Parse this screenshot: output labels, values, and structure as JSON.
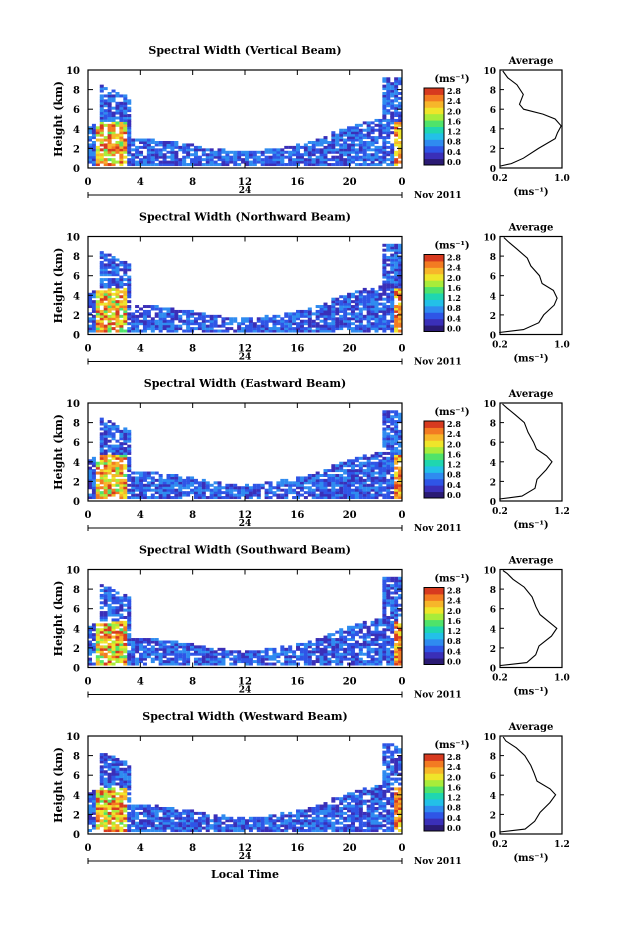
{
  "colors": {
    "palette": [
      "#2a1a73",
      "#3a2fb8",
      "#2f55e6",
      "#2f8bf0",
      "#23c0e8",
      "#1fd6b0",
      "#4fe36a",
      "#a8ec3a",
      "#efe52a",
      "#f7b62a",
      "#f37b22",
      "#d73a1f"
    ],
    "axis": "#000000",
    "background": "#ffffff"
  },
  "shared": {
    "ylabel": "Height (km)",
    "xlabel": "Local Time",
    "date_label": "Nov 2011",
    "day_label": "24",
    "unit_label": "(ms⁻¹)",
    "avg_title": "Average",
    "avg_unit": "(ms⁻¹)",
    "x_ticks": [
      "0",
      "4",
      "8",
      "12",
      "16",
      "20",
      "0"
    ],
    "y_ticks": [
      "0",
      "2",
      "4",
      "6",
      "8",
      "10"
    ],
    "colorbar_ticks": [
      "0.0",
      "0.4",
      "0.8",
      "1.2",
      "1.6",
      "2.0",
      "2.4",
      "2.8"
    ]
  },
  "chart_data": [
    {
      "type": "heatmap",
      "title": "Spectral Width (Vertical Beam)",
      "xlim": [
        0,
        24
      ],
      "ylim": [
        0,
        10
      ],
      "clim": [
        0,
        3.0
      ],
      "avg": {
        "xticks": [
          "0.2",
          "1.0"
        ],
        "xlim": [
          0.2,
          1.0
        ],
        "profile": [
          [
            0.2,
            0.2
          ],
          [
            0.35,
            0.45
          ],
          [
            0.5,
            1.0
          ],
          [
            0.7,
            2.0
          ],
          [
            0.9,
            3.0
          ],
          [
            0.95,
            3.6
          ],
          [
            1.0,
            4.3
          ],
          [
            0.9,
            5.0
          ],
          [
            0.75,
            5.5
          ],
          [
            0.5,
            6.0
          ],
          [
            0.45,
            6.5
          ],
          [
            0.5,
            7.5
          ],
          [
            0.42,
            8.5
          ],
          [
            0.3,
            9.2
          ],
          [
            0.25,
            9.9
          ]
        ]
      }
    },
    {
      "type": "heatmap",
      "title": "Spectral Width (Northward Beam)",
      "xlim": [
        0,
        24
      ],
      "ylim": [
        0,
        10
      ],
      "clim": [
        0,
        3.0
      ],
      "avg": {
        "xticks": [
          "0.2",
          "1.0"
        ],
        "xlim": [
          0.2,
          1.0
        ],
        "profile": [
          [
            0.2,
            0.2
          ],
          [
            0.5,
            0.5
          ],
          [
            0.7,
            1.2
          ],
          [
            0.75,
            2.0
          ],
          [
            0.9,
            3.0
          ],
          [
            0.95,
            3.7
          ],
          [
            0.88,
            4.5
          ],
          [
            0.75,
            5.2
          ],
          [
            0.7,
            6.0
          ],
          [
            0.6,
            7.0
          ],
          [
            0.55,
            7.8
          ],
          [
            0.4,
            8.8
          ],
          [
            0.3,
            9.5
          ],
          [
            0.25,
            9.9
          ]
        ]
      }
    },
    {
      "type": "heatmap",
      "title": "Spectral Width (Eastward Beam)",
      "xlim": [
        0,
        24
      ],
      "ylim": [
        0,
        10
      ],
      "clim": [
        0,
        3.0
      ],
      "avg": {
        "xticks": [
          "0.2",
          "1.2"
        ],
        "xlim": [
          0.2,
          1.2
        ],
        "profile": [
          [
            0.2,
            0.2
          ],
          [
            0.55,
            0.5
          ],
          [
            0.75,
            1.3
          ],
          [
            0.8,
            2.2
          ],
          [
            0.95,
            3.2
          ],
          [
            1.05,
            4.0
          ],
          [
            0.95,
            4.6
          ],
          [
            0.8,
            5.3
          ],
          [
            0.75,
            6.0
          ],
          [
            0.65,
            7.0
          ],
          [
            0.6,
            8.0
          ],
          [
            0.45,
            8.8
          ],
          [
            0.3,
            9.5
          ],
          [
            0.25,
            9.9
          ]
        ]
      }
    },
    {
      "type": "heatmap",
      "title": "Spectral Width (Southward Beam)",
      "xlim": [
        0,
        24
      ],
      "ylim": [
        0,
        10
      ],
      "clim": [
        0,
        3.0
      ],
      "avg": {
        "xticks": [
          "0.2",
          "1.0"
        ],
        "xlim": [
          0.2,
          1.0
        ],
        "profile": [
          [
            0.2,
            0.2
          ],
          [
            0.55,
            0.5
          ],
          [
            0.65,
            1.3
          ],
          [
            0.7,
            2.2
          ],
          [
            0.85,
            3.2
          ],
          [
            0.92,
            4.0
          ],
          [
            0.85,
            4.6
          ],
          [
            0.72,
            5.4
          ],
          [
            0.65,
            6.2
          ],
          [
            0.6,
            7.2
          ],
          [
            0.5,
            8.2
          ],
          [
            0.38,
            9.0
          ],
          [
            0.28,
            9.6
          ],
          [
            0.25,
            9.9
          ]
        ]
      }
    },
    {
      "type": "heatmap",
      "title": "Spectral Width (Westward Beam)",
      "xlim": [
        0,
        24
      ],
      "ylim": [
        0,
        10
      ],
      "clim": [
        0,
        3.0
      ],
      "avg": {
        "xticks": [
          "0.2",
          "1.2"
        ],
        "xlim": [
          0.2,
          1.2
        ],
        "profile": [
          [
            0.2,
            0.2
          ],
          [
            0.6,
            0.5
          ],
          [
            0.75,
            1.3
          ],
          [
            0.85,
            2.2
          ],
          [
            1.0,
            3.2
          ],
          [
            1.1,
            4.0
          ],
          [
            1.0,
            4.6
          ],
          [
            0.8,
            5.4
          ],
          [
            0.75,
            6.2
          ],
          [
            0.7,
            7.0
          ],
          [
            0.6,
            8.0
          ],
          [
            0.45,
            8.8
          ],
          [
            0.3,
            9.5
          ],
          [
            0.25,
            9.9
          ]
        ]
      }
    }
  ]
}
